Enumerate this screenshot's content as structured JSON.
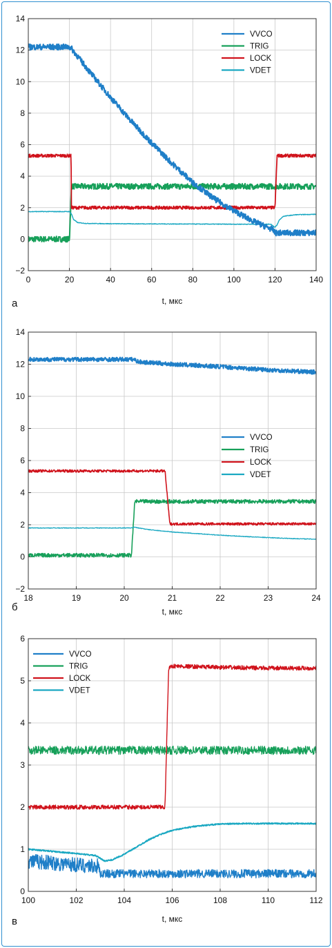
{
  "colors": {
    "VVCO": "#1f7fc8",
    "TRIG": "#17a05a",
    "LOCK": "#d0121b",
    "VDET": "#1aa8c2"
  },
  "chart_data": [
    {
      "type": "line",
      "panel_label": "а",
      "xlabel": "t, мкс",
      "ylabel": "",
      "xlim": [
        0,
        140
      ],
      "ylim": [
        -2,
        14
      ],
      "xticks": [
        "0",
        "20",
        "40",
        "60",
        "80",
        "100",
        "120",
        "140"
      ],
      "xtick_values": [
        0,
        20,
        40,
        60,
        80,
        100,
        120,
        140
      ],
      "yticks": [
        "−2",
        "0",
        "2",
        "4",
        "6",
        "8",
        "10",
        "12",
        "14"
      ],
      "ytick_values": [
        -2,
        0,
        2,
        4,
        6,
        8,
        10,
        12,
        14
      ],
      "grid": true,
      "legend_position": "top-right",
      "series": [
        {
          "name": "VVCO",
          "x": [
            0,
            20,
            21,
            30,
            40,
            50,
            60,
            70,
            80,
            90,
            100,
            110,
            119,
            120,
            121,
            140
          ],
          "y": [
            12.2,
            12.2,
            12.1,
            10.6,
            9.0,
            7.5,
            6.1,
            4.8,
            3.6,
            2.6,
            1.8,
            1.1,
            0.6,
            0.4,
            0.4,
            0.4
          ]
        },
        {
          "name": "TRIG",
          "x": [
            0,
            20,
            21,
            120,
            121,
            140
          ],
          "y": [
            0.0,
            0.0,
            3.35,
            3.35,
            3.35,
            3.35
          ]
        },
        {
          "name": "LOCK",
          "x": [
            0,
            20.8,
            21,
            120,
            121,
            140
          ],
          "y": [
            5.3,
            5.3,
            2.0,
            2.0,
            5.3,
            5.3
          ]
        },
        {
          "name": "VDET",
          "x": [
            0,
            20,
            21,
            22,
            24,
            28,
            40,
            60,
            80,
            100,
            118,
            120,
            121,
            122,
            124,
            130,
            140
          ],
          "y": [
            1.75,
            1.75,
            1.6,
            1.25,
            1.05,
            1.0,
            0.98,
            0.97,
            0.96,
            0.95,
            0.95,
            0.75,
            0.9,
            1.2,
            1.45,
            1.55,
            1.58
          ]
        }
      ]
    },
    {
      "type": "line",
      "panel_label": "б",
      "xlabel": "t, мкс",
      "ylabel": "",
      "xlim": [
        18,
        24
      ],
      "ylim": [
        -2,
        14
      ],
      "xticks": [
        "18",
        "19",
        "20",
        "21",
        "22",
        "23",
        "24"
      ],
      "xtick_values": [
        18,
        19,
        20,
        21,
        22,
        23,
        24
      ],
      "yticks": [
        "−2",
        "0",
        "2",
        "4",
        "6",
        "8",
        "10",
        "12",
        "14"
      ],
      "ytick_values": [
        -2,
        0,
        2,
        4,
        6,
        8,
        10,
        12,
        14
      ],
      "grid": true,
      "legend_position": "center-right",
      "series": [
        {
          "name": "VVCO",
          "x": [
            18,
            20.2,
            20.3,
            21,
            22,
            23,
            24
          ],
          "y": [
            12.3,
            12.3,
            12.15,
            12.0,
            11.85,
            11.65,
            11.5
          ]
        },
        {
          "name": "TRIG",
          "x": [
            18,
            20.15,
            20.22,
            24
          ],
          "y": [
            0.1,
            0.1,
            3.45,
            3.45
          ]
        },
        {
          "name": "LOCK",
          "x": [
            18,
            20.85,
            20.95,
            24
          ],
          "y": [
            5.35,
            5.35,
            2.05,
            2.05
          ]
        },
        {
          "name": "VDET",
          "x": [
            18,
            20.15,
            20.2,
            20.5,
            21,
            21.5,
            22,
            22.5,
            23,
            23.5,
            24
          ],
          "y": [
            1.8,
            1.8,
            1.85,
            1.7,
            1.55,
            1.45,
            1.35,
            1.27,
            1.2,
            1.14,
            1.1
          ]
        }
      ]
    },
    {
      "type": "line",
      "panel_label": "в",
      "xlabel": "t, мкс",
      "ylabel": "",
      "xlim": [
        100,
        112
      ],
      "ylim": [
        0,
        6
      ],
      "xticks": [
        "100",
        "102",
        "104",
        "106",
        "108",
        "110",
        "112"
      ],
      "xtick_values": [
        100,
        102,
        104,
        106,
        108,
        110,
        112
      ],
      "yticks": [
        "0",
        "1",
        "2",
        "3",
        "4",
        "5",
        "6"
      ],
      "ytick_values": [
        0,
        1,
        2,
        3,
        4,
        5,
        6
      ],
      "grid": true,
      "legend_position": "top-left",
      "series": [
        {
          "name": "VVCO",
          "x": [
            100,
            101,
            102,
            102.9,
            103,
            104,
            106,
            108,
            110,
            112
          ],
          "y": [
            0.72,
            0.68,
            0.63,
            0.6,
            0.42,
            0.42,
            0.42,
            0.42,
            0.42,
            0.42
          ]
        },
        {
          "name": "TRIG",
          "x": [
            100,
            112
          ],
          "y": [
            3.35,
            3.35
          ]
        },
        {
          "name": "LOCK",
          "x": [
            100,
            105.7,
            105.85,
            106,
            108,
            110,
            112
          ],
          "y": [
            2.0,
            2.0,
            5.3,
            5.35,
            5.32,
            5.3,
            5.3
          ]
        },
        {
          "name": "VDET",
          "x": [
            100,
            101,
            102,
            102.8,
            103.2,
            103.5,
            104,
            104.5,
            105,
            105.5,
            106,
            107,
            108,
            109,
            110,
            111,
            112
          ],
          "y": [
            1.0,
            0.95,
            0.9,
            0.85,
            0.72,
            0.75,
            0.88,
            1.05,
            1.22,
            1.35,
            1.45,
            1.55,
            1.6,
            1.61,
            1.61,
            1.61,
            1.61
          ]
        }
      ]
    }
  ]
}
